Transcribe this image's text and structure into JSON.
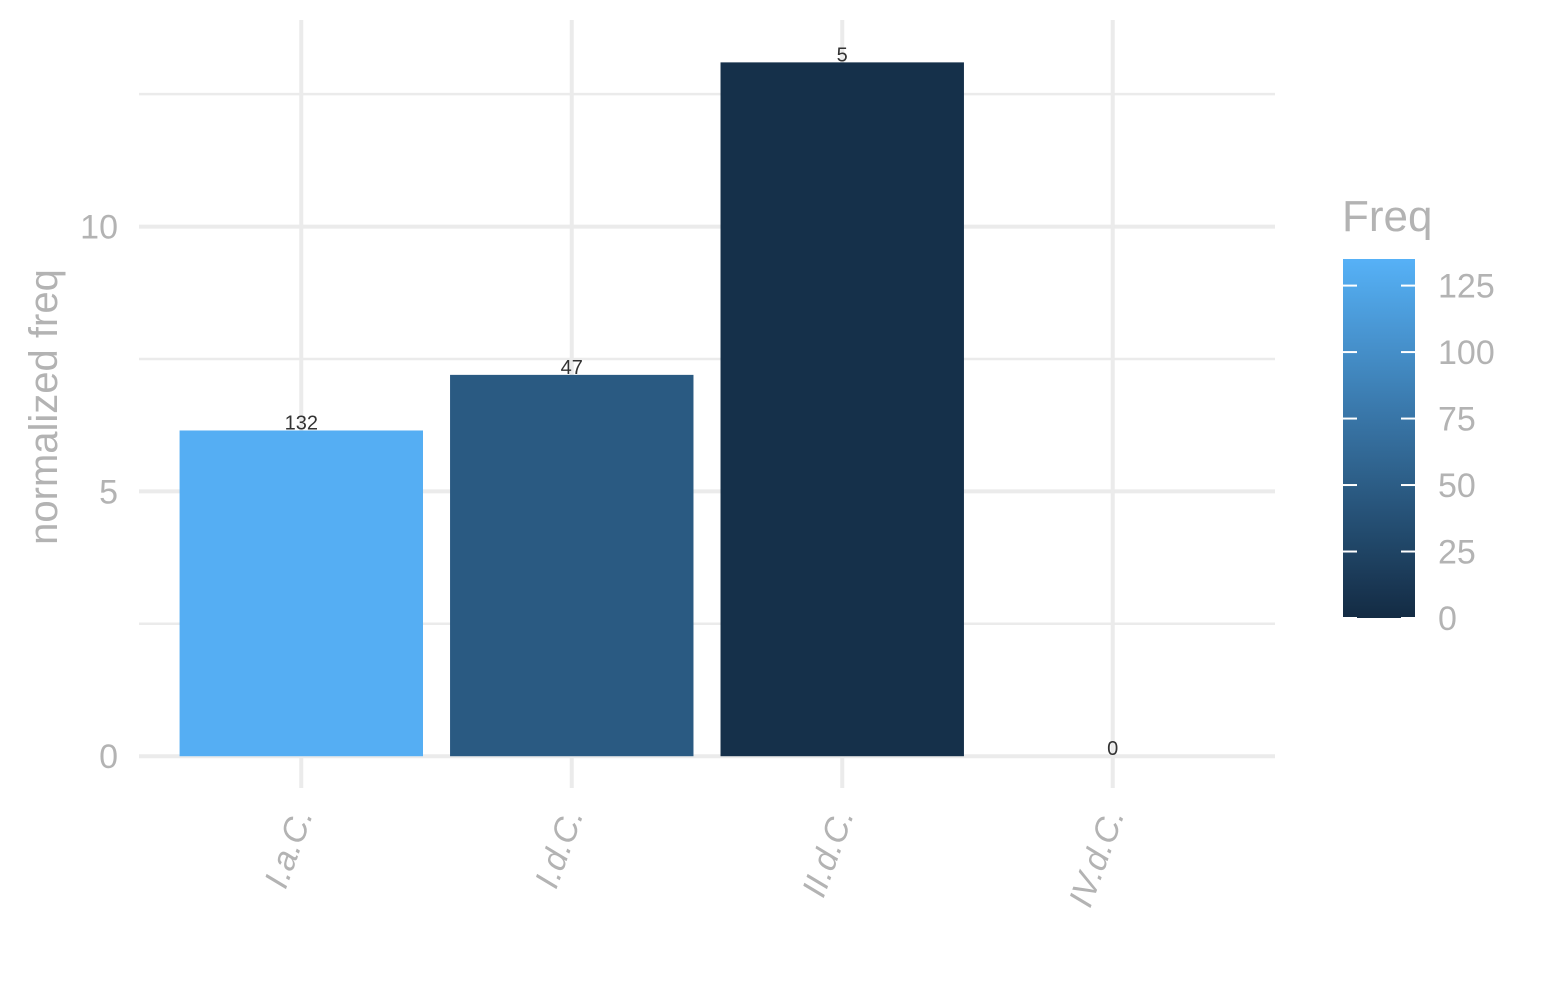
{
  "chart_data": {
    "type": "bar",
    "categories": [
      "I.a.C.",
      "I.d.C.",
      "II.d.C.",
      "IV.d.C."
    ],
    "values": [
      6.15,
      7.2,
      13.1,
      0
    ],
    "bar_labels": [
      "132",
      "47",
      "5",
      "0"
    ],
    "fill_values": [
      132,
      47,
      5,
      0
    ],
    "ylabel": "normalized freq",
    "xlabel": "",
    "ylim": [
      -0.6,
      13.9
    ],
    "yticks": [
      0,
      5,
      10
    ],
    "grid": true,
    "legend": {
      "title": "Freq",
      "placement": "right",
      "range": [
        0,
        135
      ],
      "ticks": [
        0,
        25,
        50,
        75,
        100,
        125
      ],
      "low_color": "#132B43",
      "high_color": "#56B1F7"
    }
  }
}
